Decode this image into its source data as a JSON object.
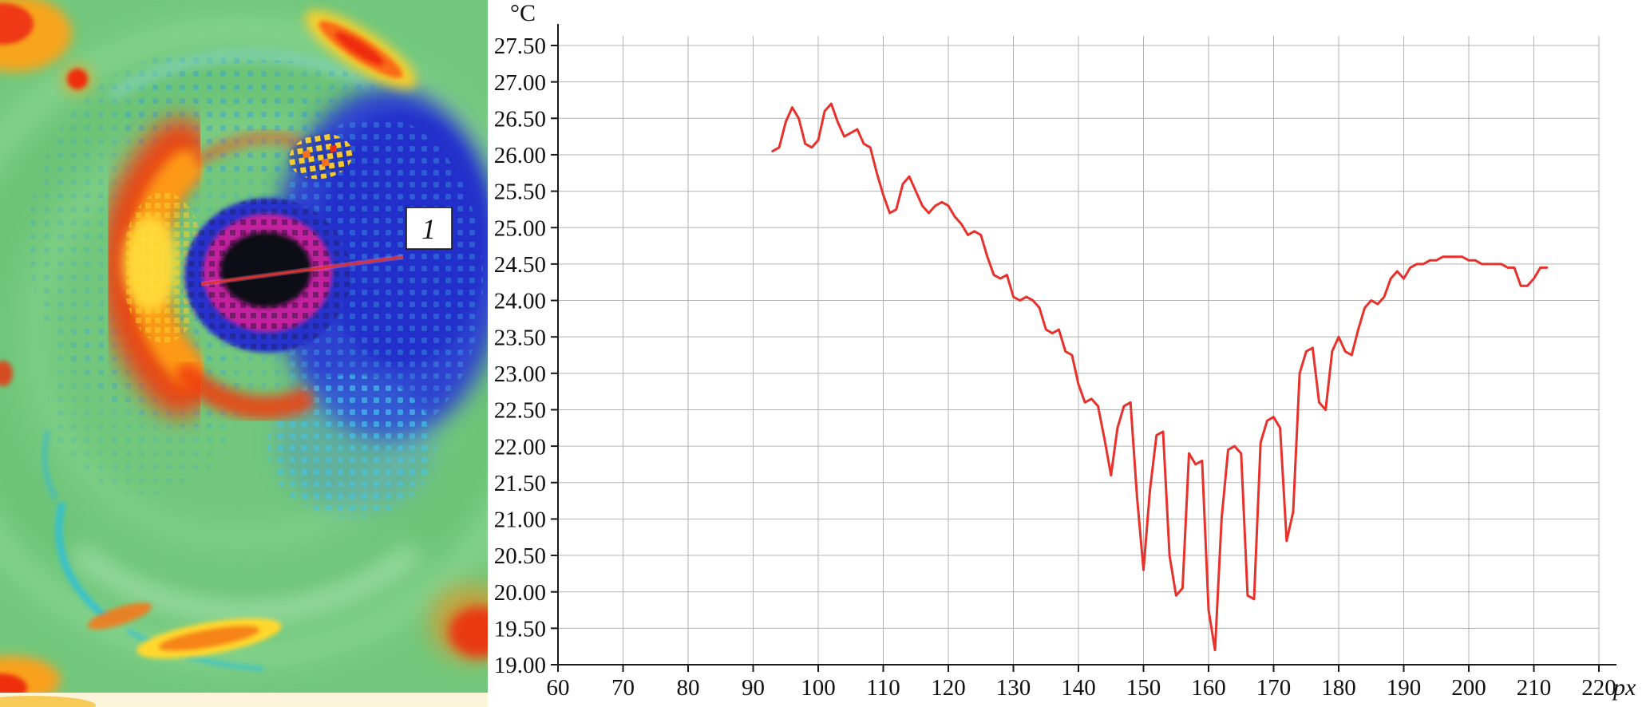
{
  "figure": {
    "panel_left": "infrared-thermogram",
    "panel_right": "temperature-profile-chart"
  },
  "thermal_image": {
    "marker_label": "1",
    "palette": {
      "background_green": "#72c77c",
      "cold_blue": "#2c3ad4",
      "core_magenta": "#c2219f",
      "core_black": "#0d0a16",
      "warm_red": "#f23e10",
      "warm_orange": "#ff9d14",
      "warm_yellow": "#ffe13c",
      "speckle_cyan": "#45c6ea",
      "measurement_line_red": "#e03030"
    }
  },
  "chart_data": {
    "type": "line",
    "title": "",
    "xlabel": "px",
    "ylabel": "°C",
    "x_ticks": [
      60,
      70,
      80,
      90,
      100,
      110,
      120,
      130,
      140,
      150,
      160,
      170,
      180,
      190,
      200,
      210,
      220
    ],
    "y_ticks": [
      19.0,
      19.5,
      20.0,
      20.5,
      21.0,
      21.5,
      22.0,
      22.5,
      23.0,
      23.5,
      24.0,
      24.5,
      25.0,
      25.5,
      26.0,
      26.5,
      27.0,
      27.5
    ],
    "xlim": [
      60,
      224
    ],
    "ylim": [
      19.0,
      27.5
    ],
    "grid": true,
    "grid_color": "#b3b3b3",
    "axis_color": "#1a1a1a",
    "line_color": "#e8312b",
    "series": [
      {
        "name": "temperature-profile",
        "x_start": 93,
        "x_step": 1,
        "values": [
          26.05,
          26.1,
          26.45,
          26.65,
          26.5,
          26.15,
          26.1,
          26.2,
          26.6,
          26.7,
          26.45,
          26.25,
          26.3,
          26.35,
          26.15,
          26.1,
          25.75,
          25.45,
          25.2,
          25.25,
          25.6,
          25.7,
          25.5,
          25.3,
          25.2,
          25.3,
          25.35,
          25.3,
          25.15,
          25.05,
          24.9,
          24.95,
          24.9,
          24.6,
          24.35,
          24.3,
          24.35,
          24.05,
          24.0,
          24.05,
          24.0,
          23.9,
          23.6,
          23.55,
          23.6,
          23.3,
          23.25,
          22.85,
          22.6,
          22.65,
          22.55,
          22.1,
          21.6,
          22.25,
          22.55,
          22.6,
          21.3,
          20.3,
          21.4,
          22.15,
          22.2,
          20.5,
          19.95,
          20.05,
          21.9,
          21.75,
          21.8,
          19.75,
          19.2,
          21.0,
          21.95,
          22.0,
          21.9,
          19.95,
          19.9,
          22.05,
          22.35,
          22.4,
          22.25,
          20.7,
          21.1,
          23.0,
          23.3,
          23.35,
          22.6,
          22.5,
          23.3,
          23.5,
          23.3,
          23.25,
          23.6,
          23.9,
          24.0,
          23.95,
          24.05,
          24.3,
          24.4,
          24.3,
          24.45,
          24.5,
          24.5,
          24.55,
          24.55,
          24.6,
          24.6,
          24.6,
          24.6,
          24.55,
          24.55,
          24.5,
          24.5,
          24.5,
          24.5,
          24.45,
          24.45,
          24.2,
          24.2,
          24.3,
          24.45,
          24.45
        ]
      }
    ]
  }
}
